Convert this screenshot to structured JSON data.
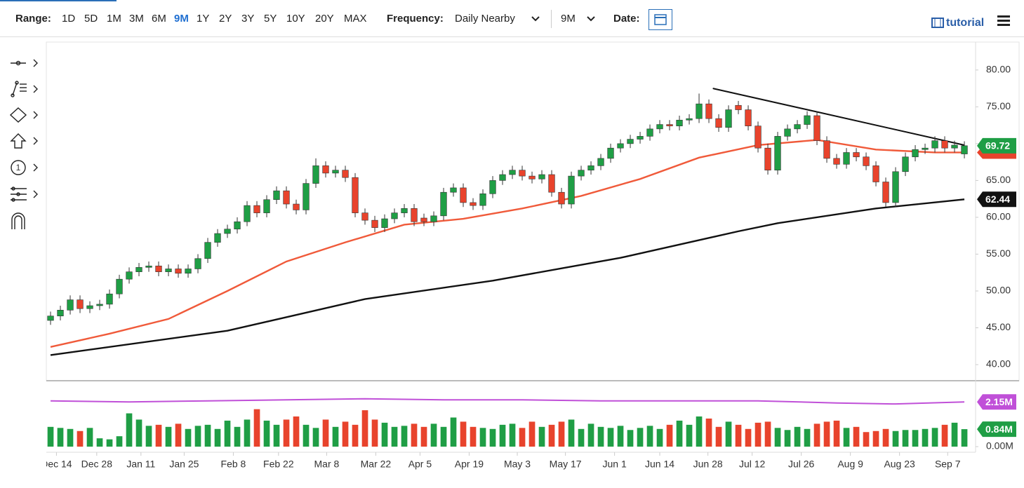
{
  "toolbar": {
    "range_label": "Range:",
    "ranges": [
      "1D",
      "5D",
      "1M",
      "3M",
      "6M",
      "9M",
      "1Y",
      "2Y",
      "3Y",
      "5Y",
      "10Y",
      "20Y",
      "MAX"
    ],
    "selected_range": 5,
    "frequency_label": "Frequency:",
    "frequency": "Daily Nearby",
    "period": "9M",
    "date_label": "Date:",
    "tutorial": "tutorial"
  },
  "chart_data": {
    "type": "candlestick",
    "xlim": [
      -0.43,
      94.14
    ],
    "ylim": [
      38.1,
      83.6
    ],
    "grid": false,
    "up_color": "#1f9e45",
    "down_color": "#e8432c",
    "yticks": [
      {
        "value": 40,
        "label": "40.00"
      },
      {
        "value": 45,
        "label": "45.00"
      },
      {
        "value": 50,
        "label": "50.00"
      },
      {
        "value": 55,
        "label": "55.00"
      },
      {
        "value": 60,
        "label": "60.00"
      },
      {
        "value": 65,
        "label": "65.00"
      },
      {
        "value": 70,
        "label": "70.00"
      },
      {
        "value": 75,
        "label": "75.00"
      },
      {
        "value": 80,
        "label": "80.00"
      }
    ],
    "xticks": [
      {
        "value": 0.6,
        "label": "Dec 14"
      },
      {
        "value": 4.7,
        "label": "Dec 28"
      },
      {
        "value": 9.2,
        "label": "Jan 11"
      },
      {
        "value": 13.6,
        "label": "Jan 25"
      },
      {
        "value": 18.6,
        "label": "Feb 8"
      },
      {
        "value": 23.2,
        "label": "Feb 22"
      },
      {
        "value": 28.1,
        "label": "Mar 8"
      },
      {
        "value": 33.1,
        "label": "Mar 22"
      },
      {
        "value": 37.6,
        "label": "Apr 5"
      },
      {
        "value": 42.6,
        "label": "Apr 19"
      },
      {
        "value": 47.5,
        "label": "May 3"
      },
      {
        "value": 52.4,
        "label": "May 17"
      },
      {
        "value": 57.4,
        "label": "Jun 1"
      },
      {
        "value": 62.0,
        "label": "Jun 14"
      },
      {
        "value": 66.9,
        "label": "Jun 28"
      },
      {
        "value": 71.4,
        "label": "Jul 12"
      },
      {
        "value": 76.4,
        "label": "Jul 26"
      },
      {
        "value": 81.4,
        "label": "Aug 9"
      },
      {
        "value": 86.4,
        "label": "Aug 23"
      },
      {
        "value": 91.3,
        "label": "Sep 7"
      }
    ],
    "open": [
      46.0,
      46.6,
      47.4,
      48.8,
      47.6,
      48.0,
      48.2,
      49.6,
      51.6,
      52.6,
      53.2,
      53.4,
      52.6,
      53.0,
      52.4,
      53.0,
      54.4,
      56.6,
      57.8,
      58.4,
      59.4,
      61.6,
      60.6,
      62.4,
      63.6,
      61.8,
      61.0,
      64.6,
      67.0,
      66.0,
      66.4,
      65.4,
      60.6,
      59.6,
      58.6,
      59.8,
      60.6,
      61.2,
      59.9,
      59.4,
      60.2,
      63.4,
      64.0,
      62.0,
      61.6,
      63.2,
      65.0,
      65.8,
      66.4,
      65.6,
      65.2,
      65.8,
      63.4,
      61.8,
      65.6,
      66.4,
      67.0,
      68.0,
      69.4,
      70.0,
      70.6,
      71.0,
      72.0,
      72.6,
      72.4,
      73.2,
      73.4,
      75.4,
      73.4,
      72.2,
      75.2,
      74.6,
      72.4,
      69.4,
      66.4,
      71.0,
      72.0,
      72.6,
      73.8,
      70.4,
      68.0,
      67.2,
      68.8,
      68.2,
      67.0,
      64.8,
      62.0,
      66.2,
      68.2,
      69.2,
      69.4,
      70.4,
      69.4,
      68.6
    ],
    "high": [
      47.2,
      48.0,
      49.4,
      49.4,
      48.6,
      48.8,
      50.2,
      52.2,
      53.2,
      53.8,
      54.0,
      54.0,
      53.6,
      53.6,
      53.6,
      55.0,
      57.2,
      58.4,
      59.0,
      60.0,
      62.2,
      62.2,
      63.0,
      64.2,
      64.2,
      62.4,
      65.2,
      68.0,
      67.6,
      67.0,
      67.0,
      66.0,
      61.2,
      60.2,
      60.4,
      61.2,
      61.8,
      61.8,
      60.5,
      60.8,
      64.0,
      64.6,
      64.6,
      62.6,
      63.8,
      65.6,
      66.4,
      67.0,
      67.0,
      66.2,
      66.4,
      66.4,
      64.0,
      66.2,
      67.0,
      67.6,
      68.6,
      70.0,
      70.6,
      71.2,
      71.6,
      72.6,
      73.2,
      73.2,
      73.8,
      74.0,
      76.8,
      76.0,
      74.0,
      75.2,
      75.8,
      75.2,
      73.0,
      70.0,
      71.6,
      72.6,
      73.2,
      74.4,
      74.4,
      71.0,
      68.6,
      69.4,
      69.4,
      68.8,
      67.6,
      65.4,
      66.8,
      68.8,
      69.8,
      70.0,
      71.0,
      71.0,
      70.4,
      70.32
    ],
    "low": [
      45.4,
      46.0,
      46.8,
      47.0,
      47.0,
      47.4,
      47.6,
      49.0,
      51.0,
      52.0,
      52.6,
      52.0,
      52.0,
      51.8,
      51.8,
      52.4,
      53.8,
      56.0,
      57.2,
      57.8,
      58.8,
      60.0,
      60.0,
      61.8,
      61.2,
      60.4,
      60.4,
      64.0,
      65.4,
      65.4,
      64.8,
      60.0,
      59.0,
      58.0,
      58.0,
      59.2,
      60.0,
      58.8,
      58.8,
      58.8,
      59.6,
      62.8,
      61.4,
      61.0,
      61.0,
      62.6,
      64.4,
      65.2,
      65.0,
      64.6,
      64.6,
      62.8,
      61.2,
      61.2,
      65.0,
      65.8,
      66.4,
      67.4,
      68.8,
      69.4,
      70.0,
      70.4,
      71.4,
      71.8,
      71.8,
      72.6,
      72.8,
      72.8,
      71.6,
      71.6,
      74.0,
      71.8,
      68.8,
      65.8,
      65.8,
      70.4,
      71.4,
      72.0,
      69.8,
      67.4,
      66.6,
      66.6,
      67.6,
      66.4,
      64.2,
      61.4,
      61.4,
      65.6,
      67.6,
      68.6,
      68.8,
      68.8,
      68.8,
      68.0
    ],
    "close": [
      46.6,
      47.4,
      48.8,
      47.6,
      48.0,
      48.2,
      49.6,
      51.6,
      52.6,
      53.2,
      53.4,
      52.6,
      53.0,
      52.4,
      53.0,
      54.4,
      56.6,
      57.8,
      58.4,
      59.4,
      61.6,
      60.6,
      62.4,
      63.6,
      61.8,
      61.0,
      64.6,
      67.0,
      66.0,
      66.4,
      65.4,
      60.6,
      59.6,
      58.6,
      59.8,
      60.6,
      61.2,
      59.4,
      59.4,
      60.2,
      63.4,
      64.0,
      62.0,
      61.6,
      63.2,
      65.0,
      65.8,
      66.4,
      65.6,
      65.2,
      65.8,
      63.4,
      61.8,
      65.6,
      66.4,
      67.0,
      68.0,
      69.4,
      70.0,
      70.6,
      71.0,
      72.0,
      72.6,
      72.4,
      73.2,
      73.4,
      75.4,
      73.4,
      72.2,
      74.6,
      74.6,
      72.4,
      69.4,
      66.4,
      71.0,
      72.0,
      72.6,
      73.8,
      70.4,
      68.0,
      67.2,
      68.8,
      68.2,
      67.0,
      64.8,
      62.0,
      66.2,
      68.2,
      69.2,
      69.4,
      70.4,
      69.4,
      69.8,
      69.72
    ],
    "lines": [
      {
        "color": "#f05a3a",
        "x": [
          0,
          6,
          12,
          18,
          24,
          30,
          36,
          42,
          48,
          54,
          60,
          66,
          72,
          78,
          84,
          90,
          93
        ],
        "values": [
          42.4,
          44.2,
          46.2,
          50.0,
          54.0,
          56.6,
          59.0,
          59.8,
          61.2,
          62.9,
          65.2,
          68.1,
          69.8,
          70.5,
          69.2,
          68.8,
          68.8
        ]
      },
      {
        "color": "#111111",
        "x": [
          0,
          18,
          32,
          45,
          58,
          70,
          74,
          84,
          93
        ],
        "values": [
          41.3,
          44.6,
          48.9,
          51.4,
          54.5,
          58.1,
          59.2,
          61.2,
          62.44
        ]
      },
      {
        "color": "#111111",
        "x": [
          67.4,
          93
        ],
        "values": [
          77.5,
          69.8
        ]
      }
    ],
    "volume": {
      "ylim": [
        0,
        3.0
      ],
      "yticks": [
        {
          "value": 0,
          "label": "0.00M"
        }
      ],
      "values": [
        0.95,
        0.9,
        0.85,
        0.75,
        0.9,
        0.4,
        0.35,
        0.5,
        1.6,
        1.3,
        1.0,
        1.05,
        0.95,
        1.1,
        0.85,
        1.0,
        1.05,
        0.85,
        1.25,
        0.95,
        1.3,
        1.8,
        1.25,
        1.05,
        1.3,
        1.45,
        1.05,
        0.9,
        1.3,
        0.95,
        1.2,
        1.05,
        1.75,
        1.3,
        1.15,
        0.95,
        1.0,
        1.1,
        0.95,
        1.1,
        0.95,
        1.4,
        1.2,
        0.95,
        0.9,
        0.85,
        1.05,
        1.1,
        0.9,
        1.2,
        0.95,
        1.05,
        1.2,
        1.3,
        0.85,
        1.1,
        0.95,
        0.9,
        1.0,
        0.8,
        0.9,
        1.0,
        0.85,
        1.05,
        1.25,
        1.05,
        1.45,
        1.35,
        0.95,
        1.2,
        1.05,
        0.85,
        1.15,
        1.2,
        0.9,
        0.8,
        0.95,
        0.85,
        1.1,
        1.2,
        1.25,
        0.9,
        0.95,
        0.7,
        0.75,
        0.85,
        0.75,
        0.8,
        0.8,
        0.85,
        0.9,
        1.05,
        1.15,
        0.84
      ],
      "last_label": "0.84M",
      "average": {
        "color": "#c050d8",
        "x": [
          0,
          8,
          16,
          24,
          32,
          40,
          48,
          56,
          64,
          72,
          80,
          86,
          93
        ],
        "values": [
          2.2,
          2.15,
          2.2,
          2.25,
          2.3,
          2.25,
          2.25,
          2.2,
          2.2,
          2.2,
          2.1,
          2.05,
          2.15
        ],
        "last_label": "2.15M"
      }
    }
  }
}
